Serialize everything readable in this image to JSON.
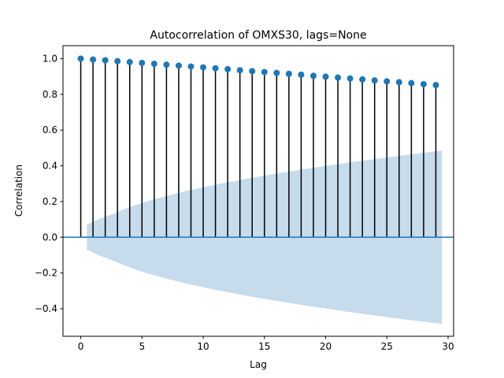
{
  "chart_data": {
    "type": "stem",
    "title": "Autocorrelation of OMXS30, lags=None",
    "xlabel": "Lag",
    "ylabel": "Correlation",
    "xlim": [
      -1.45,
      30.45
    ],
    "ylim": [
      -0.5542,
      1.0726
    ],
    "xticks": [
      0,
      5,
      10,
      15,
      20,
      25,
      30
    ],
    "yticks": [
      -0.4,
      -0.2,
      0.0,
      0.2,
      0.4,
      0.6,
      0.8,
      1.0
    ],
    "ytick_labels": [
      "−0.4",
      "−0.2",
      "0.0",
      "0.2",
      "0.4",
      "0.6",
      "0.8",
      "1.0"
    ],
    "lags": [
      0,
      1,
      2,
      3,
      4,
      5,
      6,
      7,
      8,
      9,
      10,
      11,
      12,
      13,
      14,
      15,
      16,
      17,
      18,
      19,
      20,
      21,
      22,
      23,
      24,
      25,
      26,
      27,
      28,
      29
    ],
    "acf": [
      1.0,
      0.995,
      0.991,
      0.986,
      0.981,
      0.976,
      0.971,
      0.966,
      0.961,
      0.956,
      0.951,
      0.946,
      0.941,
      0.935,
      0.93,
      0.925,
      0.92,
      0.915,
      0.91,
      0.904,
      0.899,
      0.894,
      0.889,
      0.884,
      0.878,
      0.873,
      0.868,
      0.863,
      0.857,
      0.852
    ],
    "confidence_band": {
      "x": [
        0.5,
        1.5,
        2.5,
        3.5,
        4.5,
        5.5,
        6.5,
        7.5,
        8.5,
        9.5,
        10.5,
        11.5,
        12.5,
        13.5,
        14.5,
        15.5,
        16.5,
        17.5,
        18.5,
        19.5,
        20.5,
        21.5,
        22.5,
        23.5,
        24.5,
        25.5,
        26.5,
        27.5,
        28.5,
        29.5
      ],
      "upper": [
        0.07,
        0.102,
        0.127,
        0.156,
        0.181,
        0.203,
        0.222,
        0.24,
        0.257,
        0.272,
        0.287,
        0.301,
        0.314,
        0.327,
        0.339,
        0.351,
        0.362,
        0.373,
        0.384,
        0.394,
        0.404,
        0.414,
        0.424,
        0.433,
        0.442,
        0.451,
        0.46,
        0.469,
        0.477,
        0.485
      ]
    },
    "colors": {
      "marker": "#1f77b4",
      "stem": "#000000",
      "band": "#c6dbec",
      "zero_line": "#1f77b4"
    },
    "grid": false,
    "legend": "none"
  }
}
